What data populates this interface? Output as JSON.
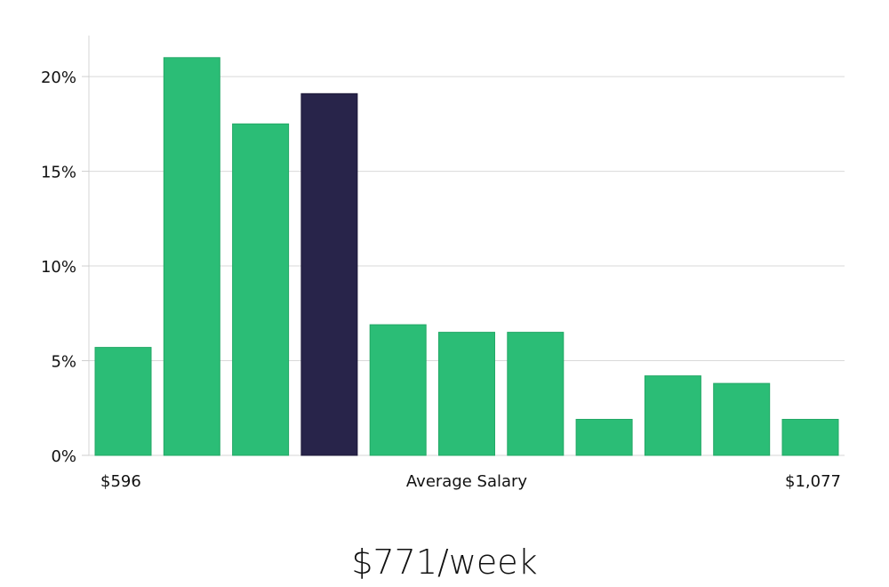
{
  "chart_data": {
    "type": "bar",
    "values": [
      5.7,
      21.0,
      17.5,
      19.1,
      6.9,
      6.5,
      6.5,
      1.9,
      4.2,
      3.8,
      1.9
    ],
    "highlight_index": 3,
    "ylim": [
      0,
      22
    ],
    "y_ticks": [
      0,
      5,
      10,
      15,
      20
    ],
    "y_tick_labels": [
      "0%",
      "5%",
      "10%",
      "15%",
      "20%"
    ],
    "x_labels": {
      "min": "$596",
      "center": "Average Salary",
      "max": "$1,077"
    },
    "grid": true,
    "colors": {
      "bar": "#2bbd76",
      "highlight": "#28244a",
      "grid": "#d9d9d9",
      "axis": "#cccccc"
    }
  },
  "headline": "$771/week"
}
